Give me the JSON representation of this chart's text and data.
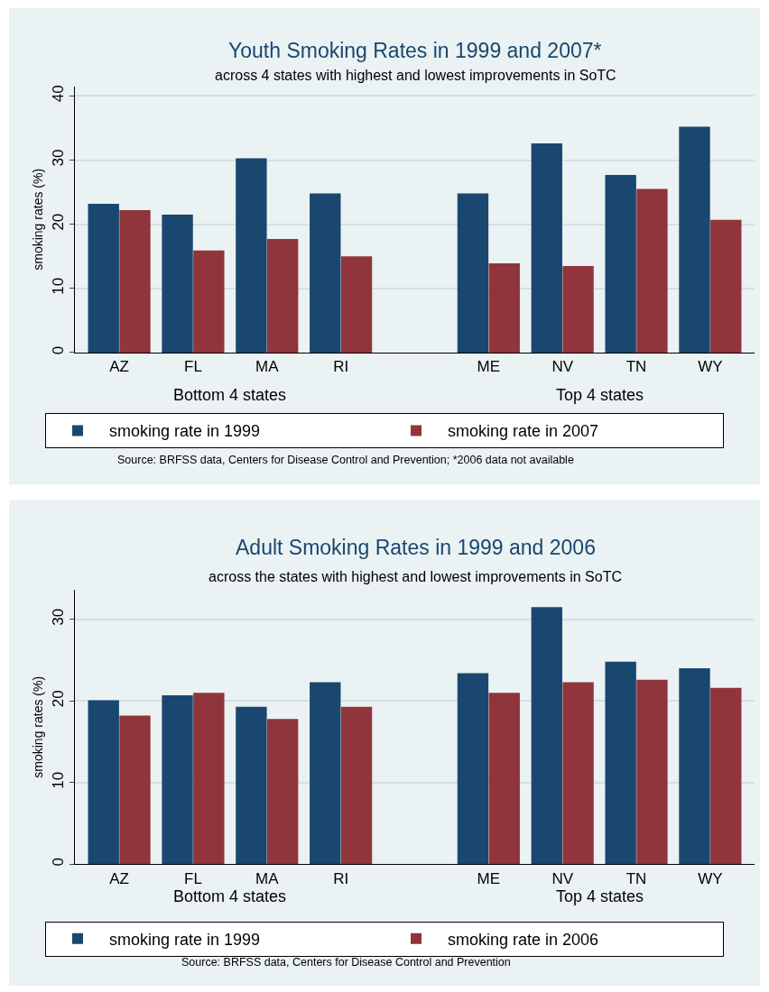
{
  "chart_data": [
    {
      "type": "bar",
      "title": "Youth Smoking Rates in 1999 and 2007*",
      "subtitle": "across 4 states with highest and lowest improvements in SoTC",
      "ylabel": "smoking rates (%)",
      "categories": [
        "AZ",
        "FL",
        "MA",
        "RI",
        null,
        "ME",
        "NV",
        "TN",
        "WY"
      ],
      "series": [
        {
          "name": "smoking rate in 1999",
          "color": "#1a476f",
          "values": [
            23.2,
            21.5,
            30.3,
            24.8,
            null,
            24.8,
            32.6,
            27.7,
            35.2
          ]
        },
        {
          "name": "smoking rate in 2007",
          "color": "#90353b",
          "values": [
            22.2,
            15.9,
            17.7,
            15.0,
            null,
            13.9,
            13.5,
            25.5,
            20.7
          ]
        }
      ],
      "ylim": [
        0,
        41.5
      ],
      "yticks": [
        0,
        10,
        20,
        30,
        40
      ],
      "grid": "y",
      "legend": "bottom",
      "annotations": [
        "Bottom 4 states",
        "Top 4 states",
        "Source: BRFSS data, Centers for Disease Control and Prevention; *2006 data not available"
      ]
    },
    {
      "type": "bar",
      "title": "Adult Smoking Rates in 1999 and 2006",
      "subtitle": "across the states with highest and lowest improvements in SoTC",
      "ylabel": "smoking rates (%)",
      "categories": [
        "AZ",
        "FL",
        "MA",
        "RI",
        null,
        "ME",
        "NV",
        "TN",
        "WY"
      ],
      "series": [
        {
          "name": "smoking rate in 1999",
          "color": "#1a476f",
          "values": [
            20.1,
            20.7,
            19.3,
            22.3,
            null,
            23.4,
            31.5,
            24.8,
            24.0
          ]
        },
        {
          "name": "smoking rate in 2006",
          "color": "#90353b",
          "values": [
            18.2,
            21.0,
            17.8,
            19.3,
            null,
            21.0,
            22.3,
            22.6,
            21.6
          ]
        }
      ],
      "ylim": [
        0,
        33.6
      ],
      "yticks": [
        0,
        10,
        20,
        30
      ],
      "grid": "y",
      "legend": "bottom",
      "annotations": [
        "Bottom 4 states",
        "Top 4 states",
        "Source: BRFSS data, Centers for Disease Control and Prevention"
      ]
    }
  ]
}
